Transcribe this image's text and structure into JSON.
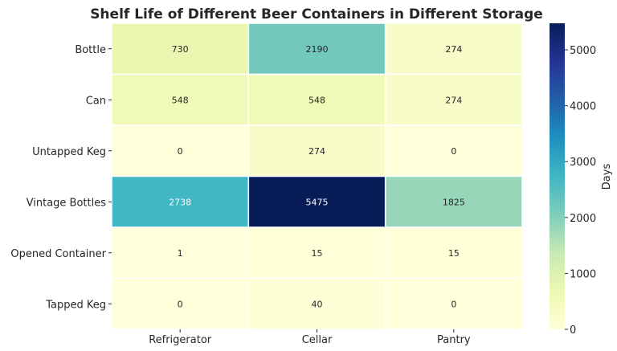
{
  "chart_data": {
    "type": "heatmap",
    "title": "Shelf Life of Different Beer Containers in Different Storage",
    "rows": [
      "Bottle",
      "Can",
      "Untapped Keg",
      "Vintage Bottles",
      "Opened Container",
      "Tapped Keg"
    ],
    "columns": [
      "Refrigerator",
      "Cellar",
      "Pantry"
    ],
    "values": [
      [
        730,
        2190,
        274
      ],
      [
        548,
        548,
        274
      ],
      [
        0,
        274,
        0
      ],
      [
        2738,
        5475,
        1825
      ],
      [
        1,
        15,
        15
      ],
      [
        0,
        40,
        0
      ]
    ],
    "colorbar": {
      "label": "Days",
      "range": [
        0,
        5475
      ],
      "ticks": [
        0,
        1000,
        2000,
        3000,
        4000,
        5000
      ]
    },
    "colormap": "YlGnBu",
    "colormap_stops": [
      "#ffffd9",
      "#edf8b1",
      "#c7e9b4",
      "#7fcdbb",
      "#41b6c4",
      "#1d91c0",
      "#225ea8",
      "#253494",
      "#081d58"
    ],
    "annotations": true,
    "grid": false
  }
}
